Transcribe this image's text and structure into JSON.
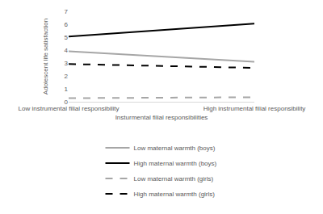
{
  "chart_data": {
    "type": "line",
    "x_label": "Insturmental filial responsibilities",
    "y_label": "Adolescent life satisfaction",
    "categories": [
      "Low instrumental filial responsibility",
      "High instrumental filial responsibility"
    ],
    "series": [
      {
        "name": "Low maternal warmth (boys)",
        "color": "#a6a6a6",
        "line_style": "solid",
        "values": [
          3.9,
          3.1
        ]
      },
      {
        "name": "High maternal warmth (boys)",
        "color": "#000000",
        "line_style": "solid",
        "values": [
          5.05,
          6.05
        ]
      },
      {
        "name": "Low maternal warmth (girls)",
        "color": "#a6a6a6",
        "line_style": "dash",
        "values": [
          0.28,
          0.35
        ]
      },
      {
        "name": "High maternal warmth (girls)",
        "color": "#000000",
        "line_style": "dash",
        "values": [
          2.92,
          2.62
        ]
      }
    ],
    "ylim": [
      0,
      7
    ],
    "yticks": [
      0,
      1,
      2,
      3,
      4,
      5,
      6,
      7
    ],
    "grid": false,
    "legend": "bottom"
  }
}
